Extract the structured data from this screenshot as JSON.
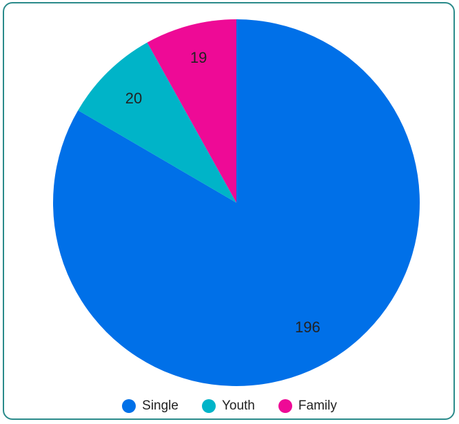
{
  "chart_data": {
    "type": "pie",
    "categories": [
      "Single",
      "Youth",
      "Family"
    ],
    "values": [
      196,
      20,
      19
    ],
    "colors": [
      "#0070e8",
      "#00b4c8",
      "#ee0a96"
    ],
    "start_angle": "12 o'clock",
    "direction": "clockwise",
    "data_labels": [
      "196",
      "20",
      "19"
    ],
    "legend_position": "bottom"
  }
}
